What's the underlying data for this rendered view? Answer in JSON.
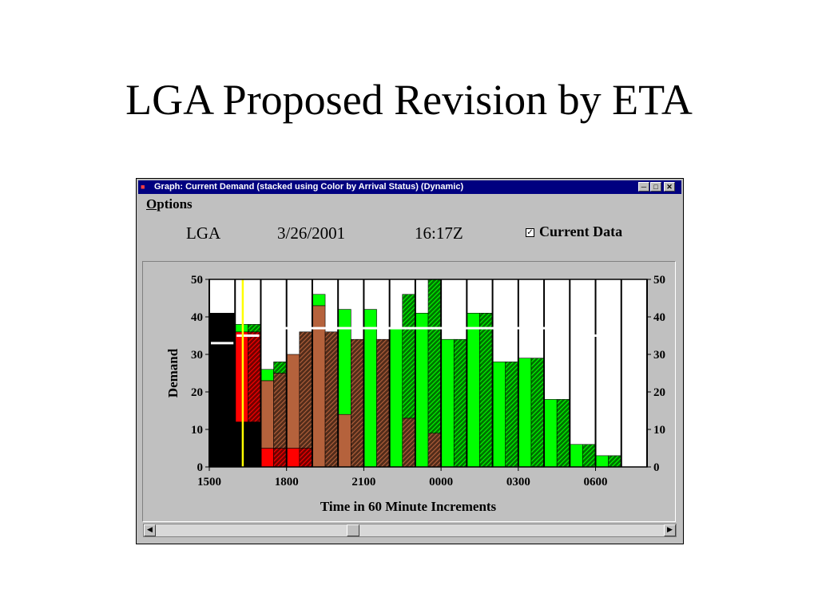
{
  "slide": {
    "title": "LGA Proposed Revision by ETA"
  },
  "window": {
    "title": "Graph: Current Demand (stacked using Color by Arrival Status) (Dynamic)",
    "menu_options_first": "O",
    "menu_options_rest": "ptions",
    "airport": "LGA",
    "date": "3/26/2001",
    "time": "16:17Z",
    "current_data_label": "Current Data",
    "current_data_checked": true,
    "minimize_icon": "minimize-icon",
    "maximize_icon": "maximize-icon",
    "close_icon": "close-icon"
  },
  "chart_data": {
    "type": "bar",
    "stacked": true,
    "xlabel": "Time in 60 Minute Increments",
    "ylabel": "Demand",
    "ylim": [
      0,
      50
    ],
    "yticks": [
      0,
      10,
      20,
      30,
      40,
      50
    ],
    "xtick_labels": [
      "1500",
      "1800",
      "2100",
      "0000",
      "0300",
      "0600"
    ],
    "hours": [
      "1500",
      "1600",
      "1700",
      "1800",
      "1900",
      "2000",
      "2100",
      "2200",
      "2300",
      "0000",
      "0100",
      "0200",
      "0300",
      "0400",
      "0500",
      "0600",
      "0700"
    ],
    "colors": {
      "black": "#000000",
      "red": "#ff0000",
      "brown": "#b5623c",
      "green": "#00ff00"
    },
    "bars": [
      {
        "hour": "1500",
        "kind": "solid",
        "segs": [
          [
            "black",
            41
          ]
        ]
      },
      {
        "hour": "1500",
        "kind": "hatched",
        "segs": [
          [
            "black",
            41
          ]
        ]
      },
      {
        "hour": "1600",
        "kind": "solid",
        "segs": [
          [
            "black",
            12
          ],
          [
            "red",
            24
          ],
          [
            "green",
            2
          ]
        ]
      },
      {
        "hour": "1600",
        "kind": "hatched",
        "segs": [
          [
            "black",
            12
          ],
          [
            "red",
            24
          ],
          [
            "green",
            2
          ]
        ]
      },
      {
        "hour": "1700",
        "kind": "solid",
        "segs": [
          [
            "red",
            5
          ],
          [
            "brown",
            18
          ],
          [
            "green",
            3
          ]
        ]
      },
      {
        "hour": "1700",
        "kind": "hatched",
        "segs": [
          [
            "red",
            5
          ],
          [
            "brown",
            20
          ],
          [
            "green",
            3
          ]
        ]
      },
      {
        "hour": "1800",
        "kind": "solid",
        "segs": [
          [
            "red",
            5
          ],
          [
            "brown",
            25
          ]
        ]
      },
      {
        "hour": "1800",
        "kind": "hatched",
        "segs": [
          [
            "red",
            5
          ],
          [
            "brown",
            31
          ]
        ]
      },
      {
        "hour": "1900",
        "kind": "solid",
        "segs": [
          [
            "brown",
            43
          ],
          [
            "green",
            3
          ]
        ]
      },
      {
        "hour": "1900",
        "kind": "hatched",
        "segs": [
          [
            "brown",
            36
          ]
        ]
      },
      {
        "hour": "2000",
        "kind": "solid",
        "segs": [
          [
            "brown",
            14
          ],
          [
            "green",
            28
          ]
        ]
      },
      {
        "hour": "2000",
        "kind": "hatched",
        "segs": [
          [
            "brown",
            34
          ]
        ]
      },
      {
        "hour": "2100",
        "kind": "solid",
        "segs": [
          [
            "green",
            42
          ]
        ]
      },
      {
        "hour": "2100",
        "kind": "hatched",
        "segs": [
          [
            "brown",
            34
          ]
        ]
      },
      {
        "hour": "2200",
        "kind": "solid",
        "segs": [
          [
            "green",
            37
          ]
        ]
      },
      {
        "hour": "2200",
        "kind": "hatched",
        "segs": [
          [
            "brown",
            13
          ],
          [
            "green",
            33
          ]
        ]
      },
      {
        "hour": "2300",
        "kind": "solid",
        "segs": [
          [
            "green",
            41
          ]
        ]
      },
      {
        "hour": "2300",
        "kind": "hatched",
        "segs": [
          [
            "brown",
            9
          ],
          [
            "green",
            41
          ]
        ]
      },
      {
        "hour": "0000",
        "kind": "solid",
        "segs": [
          [
            "green",
            34
          ]
        ]
      },
      {
        "hour": "0000",
        "kind": "hatched",
        "segs": [
          [
            "green",
            34
          ]
        ]
      },
      {
        "hour": "0100",
        "kind": "solid",
        "segs": [
          [
            "green",
            41
          ]
        ]
      },
      {
        "hour": "0100",
        "kind": "hatched",
        "segs": [
          [
            "green",
            41
          ]
        ]
      },
      {
        "hour": "0200",
        "kind": "solid",
        "segs": [
          [
            "green",
            28
          ]
        ]
      },
      {
        "hour": "0200",
        "kind": "hatched",
        "segs": [
          [
            "green",
            28
          ]
        ]
      },
      {
        "hour": "0300",
        "kind": "solid",
        "segs": [
          [
            "green",
            29
          ]
        ]
      },
      {
        "hour": "0300",
        "kind": "hatched",
        "segs": [
          [
            "green",
            29
          ]
        ]
      },
      {
        "hour": "0400",
        "kind": "solid",
        "segs": [
          [
            "green",
            18
          ]
        ]
      },
      {
        "hour": "0400",
        "kind": "hatched",
        "segs": [
          [
            "green",
            18
          ]
        ]
      },
      {
        "hour": "0500",
        "kind": "solid",
        "segs": [
          [
            "green",
            6
          ]
        ]
      },
      {
        "hour": "0500",
        "kind": "hatched",
        "segs": [
          [
            "green",
            6
          ]
        ]
      },
      {
        "hour": "0600",
        "kind": "solid",
        "segs": [
          [
            "green",
            3
          ]
        ]
      },
      {
        "hour": "0600",
        "kind": "hatched",
        "segs": [
          [
            "green",
            3
          ]
        ]
      }
    ],
    "capacity_line": [
      {
        "from_hour": "1500",
        "to_hour": "1500",
        "value": 33
      },
      {
        "from_hour": "1600",
        "to_hour": "1600",
        "value": 35
      },
      {
        "from_hour": "1700",
        "to_hour": "0400",
        "value": 37
      },
      {
        "from_hour": "0500",
        "to_hour": "0600",
        "value": 35
      }
    ],
    "current_time_hour_fraction": 1.3
  }
}
